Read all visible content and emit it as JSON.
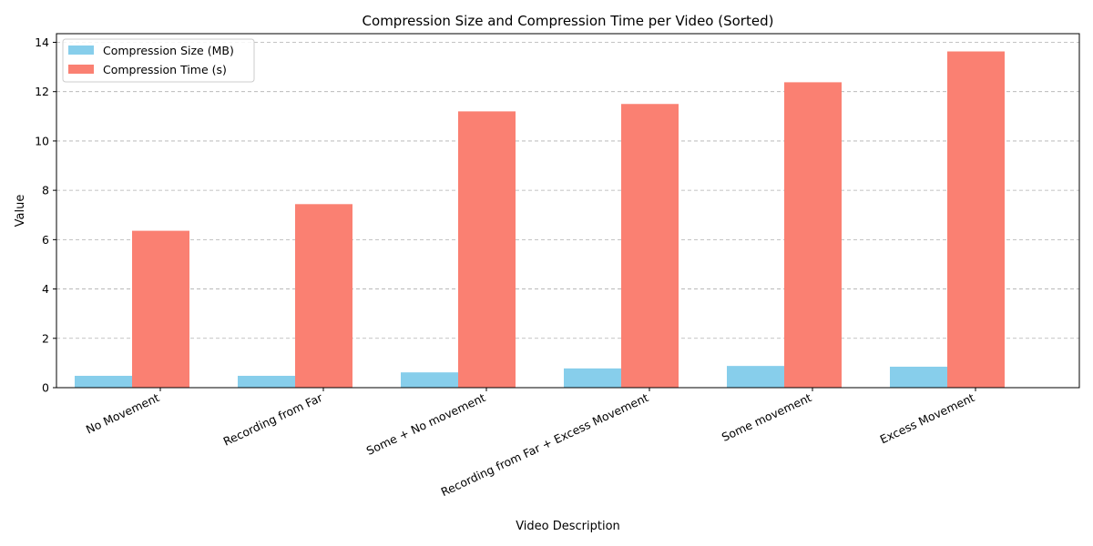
{
  "chart_data": {
    "type": "bar",
    "title": "Compression Size and Compression Time per Video (Sorted)",
    "xlabel": "Video Description",
    "ylabel": "Value",
    "ylim": [
      0,
      14.35
    ],
    "yticks": [
      0,
      2,
      4,
      6,
      8,
      10,
      12,
      14
    ],
    "grid": "y-dashed",
    "legend_position": "top-left",
    "categories": [
      "No Movement",
      "Recording from Far",
      "Some + No movement",
      "Recording from Far + Excess Movement",
      "Some movement",
      "Excess Movement"
    ],
    "series": [
      {
        "name": "Compression Size (MB)",
        "color": "#87ceeb",
        "values": [
          0.48,
          0.48,
          0.62,
          0.78,
          0.88,
          0.85
        ]
      },
      {
        "name": "Compression Time (s)",
        "color": "#fa8072",
        "values": [
          6.36,
          7.44,
          11.2,
          11.5,
          12.38,
          13.63
        ]
      }
    ]
  }
}
